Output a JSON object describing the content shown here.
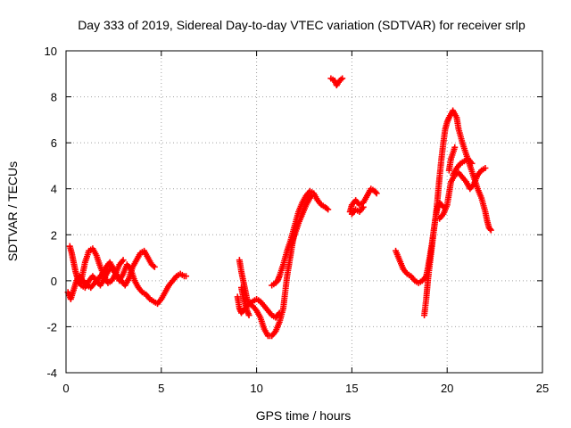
{
  "chart_data": {
    "type": "scatter",
    "title": "Day 333 of 2019, Sidereal Day-to-day VTEC variation (SDTVAR) for receiver srlp",
    "xlabel": "GPS time / hours",
    "ylabel": "SDTVAR / TECUs",
    "xlim": [
      0,
      25
    ],
    "ylim": [
      -4,
      10
    ],
    "xticks": [
      "0",
      "5",
      "10",
      "15",
      "20",
      "25"
    ],
    "yticks": [
      "-4",
      "-2",
      "0",
      "2",
      "4",
      "6",
      "8",
      "10"
    ],
    "grid": true,
    "marker": "+",
    "color": "#ff0000",
    "series": [
      {
        "segments": [
          [
            [
              0.2,
              1.5
            ],
            [
              0.3,
              1.2
            ],
            [
              0.4,
              0.8
            ],
            [
              0.5,
              0.4
            ],
            [
              0.6,
              0.1
            ],
            [
              0.7,
              -0.1
            ],
            [
              0.85,
              0.2
            ],
            [
              1.0,
              0.8
            ],
            [
              1.2,
              1.3
            ],
            [
              1.4,
              1.4
            ],
            [
              1.6,
              1.1
            ],
            [
              1.8,
              0.6
            ],
            [
              2.0,
              0.2
            ],
            [
              2.2,
              -0.1
            ],
            [
              2.4,
              0.0
            ],
            [
              2.6,
              0.3
            ],
            [
              2.8,
              0.7
            ],
            [
              3.0,
              0.9
            ]
          ],
          [
            [
              0.1,
              -0.5
            ],
            [
              0.25,
              -0.8
            ],
            [
              0.4,
              -0.4
            ],
            [
              0.55,
              0.0
            ],
            [
              0.7,
              0.2
            ],
            [
              0.9,
              0.0
            ],
            [
              1.1,
              -0.2
            ],
            [
              1.3,
              -0.3
            ],
            [
              1.5,
              -0.1
            ],
            [
              1.7,
              0.1
            ],
            [
              1.9,
              0.3
            ],
            [
              2.1,
              0.6
            ],
            [
              2.3,
              0.8
            ],
            [
              2.5,
              0.5
            ],
            [
              2.7,
              0.2
            ],
            [
              2.9,
              0.0
            ],
            [
              3.1,
              -0.2
            ],
            [
              3.3,
              0.1
            ],
            [
              3.5,
              0.6
            ],
            [
              3.7,
              0.9
            ],
            [
              3.9,
              1.2
            ],
            [
              4.1,
              1.3
            ],
            [
              4.3,
              1.0
            ],
            [
              4.5,
              0.7
            ],
            [
              4.65,
              0.6
            ]
          ],
          [
            [
              0.6,
              0.0
            ],
            [
              0.8,
              -0.2
            ],
            [
              1.0,
              -0.3
            ],
            [
              1.2,
              0.0
            ],
            [
              1.4,
              0.2
            ],
            [
              1.6,
              0.0
            ],
            [
              1.8,
              -0.2
            ],
            [
              2.0,
              0.1
            ],
            [
              2.2,
              0.4
            ],
            [
              2.4,
              0.6
            ],
            [
              2.6,
              0.3
            ],
            [
              2.8,
              0.0
            ],
            [
              3.0,
              0.3
            ],
            [
              3.2,
              0.7
            ],
            [
              3.4,
              0.5
            ],
            [
              3.6,
              0.0
            ],
            [
              3.8,
              -0.3
            ],
            [
              4.0,
              -0.5
            ],
            [
              4.2,
              -0.6
            ],
            [
              4.4,
              -0.8
            ],
            [
              4.6,
              -0.9
            ],
            [
              4.8,
              -1.0
            ],
            [
              5.0,
              -0.8
            ],
            [
              5.2,
              -0.5
            ],
            [
              5.4,
              -0.2
            ],
            [
              5.6,
              0.0
            ],
            [
              5.8,
              0.2
            ],
            [
              6.0,
              0.3
            ],
            [
              6.2,
              0.2
            ],
            [
              6.3,
              0.2
            ]
          ],
          [
            [
              9.1,
              0.9
            ],
            [
              9.2,
              0.4
            ],
            [
              9.3,
              0.0
            ],
            [
              9.4,
              -0.4
            ],
            [
              9.5,
              -0.8
            ],
            [
              9.6,
              -1.0
            ],
            [
              9.8,
              -1.1
            ],
            [
              10.0,
              -1.3
            ],
            [
              10.2,
              -1.6
            ],
            [
              10.4,
              -2.1
            ],
            [
              10.6,
              -2.4
            ],
            [
              10.8,
              -2.4
            ],
            [
              11.0,
              -2.2
            ],
            [
              11.2,
              -1.8
            ],
            [
              11.4,
              -1.2
            ],
            [
              11.5,
              -0.5
            ],
            [
              11.6,
              0.2
            ],
            [
              11.7,
              0.7
            ],
            [
              11.8,
              1.2
            ],
            [
              11.9,
              1.7
            ],
            [
              12.0,
              2.1
            ],
            [
              12.1,
              2.4
            ]
          ],
          [
            [
              9.0,
              -0.7
            ],
            [
              9.1,
              -1.2
            ],
            [
              9.2,
              -1.4
            ],
            [
              9.4,
              -1.2
            ],
            [
              9.6,
              -1.0
            ],
            [
              9.8,
              -0.9
            ],
            [
              10.0,
              -0.8
            ],
            [
              10.2,
              -0.9
            ],
            [
              10.4,
              -1.1
            ],
            [
              10.6,
              -1.3
            ],
            [
              10.8,
              -1.5
            ],
            [
              11.0,
              -1.6
            ],
            [
              11.1,
              -1.5
            ],
            [
              11.2,
              -1.4
            ]
          ],
          [
            [
              9.2,
              -0.3
            ],
            [
              9.3,
              -0.7
            ],
            [
              9.4,
              -1.0
            ],
            [
              9.5,
              -1.3
            ],
            [
              9.6,
              -1.5
            ]
          ],
          [
            [
              10.8,
              -0.2
            ],
            [
              11.0,
              -0.1
            ],
            [
              11.1,
              0.0
            ],
            [
              11.2,
              0.2
            ],
            [
              11.4,
              0.7
            ],
            [
              11.6,
              1.3
            ],
            [
              11.8,
              1.8
            ],
            [
              12.0,
              2.4
            ],
            [
              12.2,
              3.0
            ],
            [
              12.4,
              3.4
            ],
            [
              12.6,
              3.7
            ],
            [
              12.8,
              3.9
            ],
            [
              13.0,
              3.8
            ],
            [
              13.2,
              3.5
            ],
            [
              13.4,
              3.3
            ],
            [
              13.6,
              3.2
            ],
            [
              13.75,
              3.1
            ]
          ],
          [
            [
              11.8,
              1.6
            ],
            [
              12.0,
              2.0
            ],
            [
              12.2,
              2.5
            ],
            [
              12.4,
              2.9
            ],
            [
              12.6,
              3.3
            ],
            [
              12.8,
              3.6
            ],
            [
              12.9,
              3.7
            ]
          ],
          [
            [
              13.9,
              8.8
            ],
            [
              14.1,
              8.7
            ],
            [
              14.2,
              8.5
            ],
            [
              14.35,
              8.7
            ],
            [
              14.5,
              8.8
            ]
          ],
          [
            [
              14.9,
              3.0
            ],
            [
              15.0,
              3.3
            ],
            [
              15.2,
              3.5
            ],
            [
              15.4,
              3.3
            ],
            [
              15.6,
              3.4
            ],
            [
              15.8,
              3.7
            ],
            [
              16.0,
              4.0
            ],
            [
              16.2,
              3.9
            ],
            [
              16.3,
              3.8
            ]
          ],
          [
            [
              15.0,
              2.9
            ],
            [
              15.2,
              3.1
            ],
            [
              15.4,
              3.0
            ],
            [
              15.6,
              3.2
            ]
          ],
          [
            [
              17.3,
              1.3
            ],
            [
              17.5,
              0.9
            ],
            [
              17.7,
              0.5
            ],
            [
              17.9,
              0.3
            ],
            [
              18.1,
              0.2
            ],
            [
              18.3,
              0.0
            ],
            [
              18.5,
              -0.1
            ],
            [
              18.7,
              0.0
            ],
            [
              18.9,
              0.2
            ],
            [
              19.0,
              0.6
            ],
            [
              19.1,
              1.1
            ],
            [
              19.2,
              1.6
            ],
            [
              19.3,
              2.2
            ],
            [
              19.4,
              2.8
            ],
            [
              19.5,
              3.2
            ],
            [
              19.6,
              3.4
            ],
            [
              19.8,
              3.2
            ]
          ],
          [
            [
              18.8,
              -1.5
            ],
            [
              18.9,
              -0.8
            ],
            [
              19.0,
              0.1
            ],
            [
              19.1,
              0.8
            ],
            [
              19.2,
              1.5
            ],
            [
              19.3,
              2.2
            ],
            [
              19.4,
              2.8
            ],
            [
              19.5,
              3.6
            ],
            [
              19.6,
              4.5
            ],
            [
              19.7,
              5.3
            ],
            [
              19.8,
              6.0
            ],
            [
              19.9,
              6.6
            ],
            [
              20.0,
              6.9
            ],
            [
              20.1,
              7.1
            ],
            [
              20.3,
              7.4
            ],
            [
              20.5,
              7.1
            ],
            [
              20.6,
              6.6
            ],
            [
              20.8,
              6.0
            ],
            [
              21.0,
              5.5
            ],
            [
              21.2,
              5.0
            ],
            [
              21.4,
              4.5
            ],
            [
              21.6,
              4.0
            ],
            [
              21.8,
              3.6
            ],
            [
              22.0,
              3.0
            ],
            [
              22.1,
              2.6
            ],
            [
              22.2,
              2.3
            ],
            [
              22.3,
              2.2
            ]
          ],
          [
            [
              19.6,
              2.7
            ],
            [
              19.8,
              2.9
            ],
            [
              20.0,
              3.3
            ],
            [
              20.1,
              3.8
            ],
            [
              20.2,
              4.3
            ],
            [
              20.4,
              4.6
            ],
            [
              20.6,
              4.7
            ],
            [
              20.8,
              4.5
            ],
            [
              21.0,
              4.3
            ],
            [
              21.2,
              4.0
            ],
            [
              21.4,
              4.2
            ],
            [
              21.6,
              4.6
            ],
            [
              21.8,
              4.8
            ],
            [
              22.0,
              4.9
            ]
          ],
          [
            [
              20.3,
              4.6
            ],
            [
              20.5,
              4.9
            ],
            [
              20.7,
              5.1
            ],
            [
              20.9,
              5.2
            ],
            [
              21.1,
              5.3
            ],
            [
              21.3,
              5.1
            ]
          ],
          [
            [
              20.1,
              4.8
            ],
            [
              20.2,
              5.3
            ],
            [
              20.4,
              5.8
            ]
          ]
        ]
      }
    ]
  }
}
